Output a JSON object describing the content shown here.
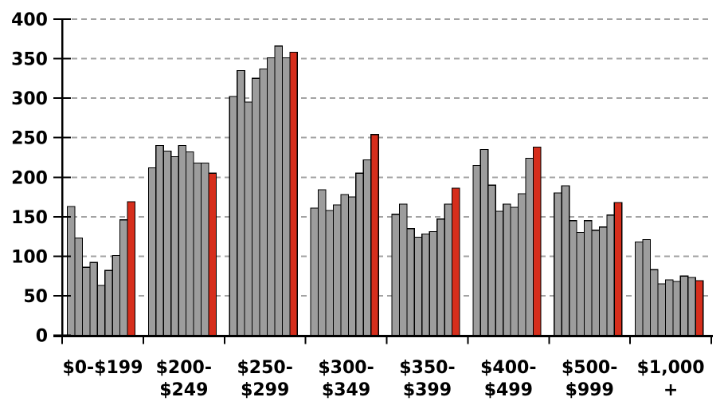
{
  "chart_data": {
    "type": "bar",
    "title": "",
    "legend": "none",
    "grid": "dashed horizontal gridlines at each y tick above 0",
    "ylim": [
      0,
      400
    ],
    "yticks": [
      0,
      50,
      100,
      150,
      200,
      250,
      300,
      350,
      400
    ],
    "categories": [
      "$0-$199",
      "$200-$249",
      "$250-$299",
      "$300-$349",
      "$350-$399",
      "$400-$499",
      "$500-$999",
      "$1,000 +"
    ],
    "bar_pattern": "each category group contains 8 gray bars followed by 1 red highlight bar",
    "groups": [
      {
        "label_lines": [
          "$0-$199"
        ],
        "gray_values": [
          163,
          123,
          86,
          92,
          63,
          82,
          101,
          146
        ],
        "red_value": 169
      },
      {
        "label_lines": [
          "$200-",
          "$249"
        ],
        "gray_values": [
          212,
          240,
          233,
          226,
          240,
          232,
          218,
          218
        ],
        "red_value": 205
      },
      {
        "label_lines": [
          "$250-",
          "$299"
        ],
        "gray_values": [
          302,
          335,
          295,
          325,
          337,
          351,
          366,
          351
        ],
        "red_value": 358
      },
      {
        "label_lines": [
          "$300-",
          "$349"
        ],
        "gray_values": [
          161,
          184,
          158,
          165,
          178,
          175,
          205,
          222
        ],
        "red_value": 254
      },
      {
        "label_lines": [
          "$350-",
          "$399"
        ],
        "gray_values": [
          153,
          166,
          135,
          124,
          128,
          131,
          147,
          166
        ],
        "red_value": 186
      },
      {
        "label_lines": [
          "$400-",
          "$499"
        ],
        "gray_values": [
          215,
          235,
          190,
          157,
          166,
          162,
          179,
          224
        ],
        "red_value": 238
      },
      {
        "label_lines": [
          "$500-",
          "$999"
        ],
        "gray_values": [
          180,
          189,
          145,
          130,
          145,
          133,
          137,
          152
        ],
        "red_value": 168
      },
      {
        "label_lines": [
          "$1,000",
          "+"
        ],
        "gray_values": [
          118,
          121,
          83,
          65,
          70,
          68,
          75,
          73
        ],
        "red_value": 69
      }
    ],
    "colors": {
      "gray_bar": "#9D9D9D",
      "red_bar": "#D62E1C",
      "bar_outline": "#000000",
      "gridline": "#A3A3A3",
      "axis": "#000000",
      "text": "#000000",
      "background": "#FFFFFF"
    }
  }
}
